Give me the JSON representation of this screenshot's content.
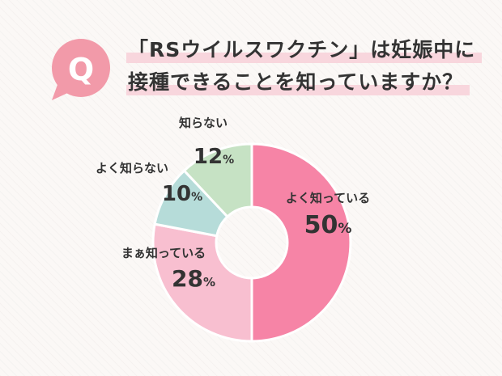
{
  "question": {
    "badge": "Q",
    "title_line1": "「RSウイルスワクチン」は妊娠中に",
    "title_line2": "接種できることを知っていますか？"
  },
  "colors": {
    "badge": "#f29aa9",
    "highlight": "#f8d6dd",
    "text": "#333333"
  },
  "chart_data": {
    "type": "pie",
    "donut": true,
    "slices": [
      {
        "label": "よく知っている",
        "value": 50,
        "display": "50",
        "unit": "%",
        "color": "#f684a6"
      },
      {
        "label": "まぁ知っている",
        "value": 28,
        "display": "28",
        "unit": "%",
        "color": "#f8bfd0"
      },
      {
        "label": "よく知らない",
        "value": 10,
        "display": "10",
        "unit": "%",
        "color": "#b6dcd9"
      },
      {
        "label": "知らない",
        "value": 12,
        "display": "12",
        "unit": "%",
        "color": "#c6e2c4"
      }
    ]
  }
}
